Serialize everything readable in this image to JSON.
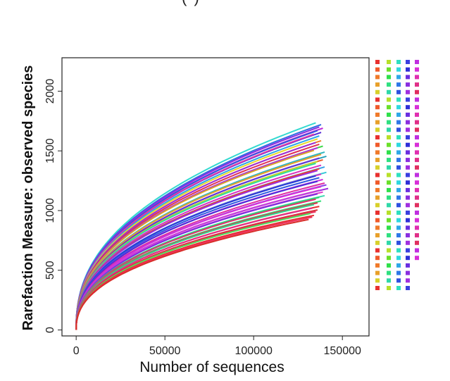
{
  "title_fragment": "(                )",
  "chart_data": {
    "type": "line",
    "title": "",
    "xlabel": "Number of sequences",
    "ylabel": "Rarefaction Measure: observed species",
    "xlim": [
      -8000,
      165000
    ],
    "ylim": [
      -50,
      2280
    ],
    "x_ticks": [
      0,
      50000,
      100000,
      150000
    ],
    "x_tick_labels": [
      "0",
      "50000",
      "100000",
      "150000"
    ],
    "y_ticks": [
      0,
      500,
      1000,
      1500,
      2000
    ],
    "y_tick_labels": [
      "0",
      "500",
      "1000",
      "1500",
      "2000"
    ],
    "grid": false,
    "legend": "right, color swatches only (5 columns), no text",
    "curve_model": "y = a * (x/1000)^b",
    "series": [
      {
        "color": "#33d9d0",
        "x_end": 135000,
        "y_end": 1735
      },
      {
        "color": "#2f6fe0",
        "x_end": 138000,
        "y_end": 1720
      },
      {
        "color": "#8a2be2",
        "x_end": 137000,
        "y_end": 1700
      },
      {
        "color": "#c02bd8",
        "x_end": 139000,
        "y_end": 1690
      },
      {
        "color": "#3355dd",
        "x_end": 136000,
        "y_end": 1670
      },
      {
        "color": "#5a2fd8",
        "x_end": 138000,
        "y_end": 1655
      },
      {
        "color": "#e03aa8",
        "x_end": 134000,
        "y_end": 1640
      },
      {
        "color": "#2aa6e8",
        "x_end": 137000,
        "y_end": 1625
      },
      {
        "color": "#e8d92a",
        "x_end": 136000,
        "y_end": 1600
      },
      {
        "color": "#f07a2a",
        "x_end": 138000,
        "y_end": 1585
      },
      {
        "color": "#9a2fd8",
        "x_end": 135000,
        "y_end": 1570
      },
      {
        "color": "#e03055",
        "x_end": 137000,
        "y_end": 1555
      },
      {
        "color": "#3fd84a",
        "x_end": 139000,
        "y_end": 1540
      },
      {
        "color": "#b52be0",
        "x_end": 136000,
        "y_end": 1525
      },
      {
        "color": "#d8a52a",
        "x_end": 134000,
        "y_end": 1505
      },
      {
        "color": "#2fb8c0",
        "x_end": 140000,
        "y_end": 1490
      },
      {
        "color": "#e8a02a",
        "x_end": 138000,
        "y_end": 1470
      },
      {
        "color": "#25a0b8",
        "x_end": 141000,
        "y_end": 1455
      },
      {
        "color": "#6a2fd8",
        "x_end": 137000,
        "y_end": 1440
      },
      {
        "color": "#f05a2a",
        "x_end": 139000,
        "y_end": 1425
      },
      {
        "color": "#b8e02a",
        "x_end": 136000,
        "y_end": 1410
      },
      {
        "color": "#2fd8a0",
        "x_end": 135000,
        "y_end": 1395
      },
      {
        "color": "#d830c0",
        "x_end": 138000,
        "y_end": 1380
      },
      {
        "color": "#3a9fe8",
        "x_end": 140000,
        "y_end": 1365
      },
      {
        "color": "#e8402a",
        "x_end": 137000,
        "y_end": 1350
      },
      {
        "color": "#9c2fe0",
        "x_end": 136000,
        "y_end": 1335
      },
      {
        "color": "#38c8d8",
        "x_end": 141000,
        "y_end": 1320
      },
      {
        "color": "#d82fc8",
        "x_end": 138000,
        "y_end": 1305
      },
      {
        "color": "#1f3fd8",
        "x_end": 135000,
        "y_end": 1290
      },
      {
        "color": "#2f5ae0",
        "x_end": 137000,
        "y_end": 1275
      },
      {
        "color": "#c82fe0",
        "x_end": 139000,
        "y_end": 1260
      },
      {
        "color": "#4a2fd8",
        "x_end": 136000,
        "y_end": 1245
      },
      {
        "color": "#e02fa0",
        "x_end": 140000,
        "y_end": 1230
      },
      {
        "color": "#8a3fe8",
        "x_end": 141000,
        "y_end": 1215
      },
      {
        "color": "#d82fd8",
        "x_end": 138000,
        "y_end": 1200
      },
      {
        "color": "#a02fe0",
        "x_end": 142000,
        "y_end": 1185
      },
      {
        "color": "#c83fd8",
        "x_end": 137000,
        "y_end": 1170
      },
      {
        "color": "#e03ac8",
        "x_end": 139000,
        "y_end": 1155
      },
      {
        "color": "#7a2fe0",
        "x_end": 136000,
        "y_end": 1140
      },
      {
        "color": "#3fd8b0",
        "x_end": 140000,
        "y_end": 1125
      },
      {
        "color": "#2ad86a",
        "x_end": 137000,
        "y_end": 1110
      },
      {
        "color": "#e03070",
        "x_end": 135000,
        "y_end": 1095
      },
      {
        "color": "#33e07a",
        "x_end": 138000,
        "y_end": 1080
      },
      {
        "color": "#e02f4a",
        "x_end": 136000,
        "y_end": 1065
      },
      {
        "color": "#2fd890",
        "x_end": 134000,
        "y_end": 1050
      },
      {
        "color": "#e8302f",
        "x_end": 137000,
        "y_end": 1035
      },
      {
        "color": "#e02f8a",
        "x_end": 133000,
        "y_end": 1020
      },
      {
        "color": "#d82f3a",
        "x_end": 136000,
        "y_end": 1005
      },
      {
        "color": "#e8305a",
        "x_end": 135000,
        "y_end": 990
      },
      {
        "color": "#4fe05a",
        "x_end": 132000,
        "y_end": 975
      },
      {
        "color": "#e02f2f",
        "x_end": 134000,
        "y_end": 960
      },
      {
        "color": "#f0305f",
        "x_end": 133000,
        "y_end": 945
      },
      {
        "color": "#d82f2a",
        "x_end": 131000,
        "y_end": 925
      }
    ],
    "legend_swatches": {
      "columns": [
        {
          "rows": 31,
          "colors": [
            "#e8302f",
            "#f05a2a",
            "#f07a2a",
            "#e8a02a",
            "#d8d02a"
          ]
        },
        {
          "rows": 31,
          "colors": [
            "#b8e02a",
            "#6ae02a",
            "#2fe04a",
            "#2fe080",
            "#2fd8a8"
          ]
        },
        {
          "rows": 31,
          "colors": [
            "#2fe0c0",
            "#2fd8e0",
            "#2fa8e8",
            "#2f78e8",
            "#2f50e0"
          ]
        },
        {
          "rows": 31,
          "colors": [
            "#3a3fe0",
            "#2f2fd8",
            "#6a2fe0",
            "#8a2fe0",
            "#a02fe0"
          ]
        },
        {
          "rows": 27,
          "colors": [
            "#c02fe0",
            "#d82fd8",
            "#e02fb0",
            "#e02f88",
            "#e02f60"
          ]
        }
      ]
    }
  }
}
